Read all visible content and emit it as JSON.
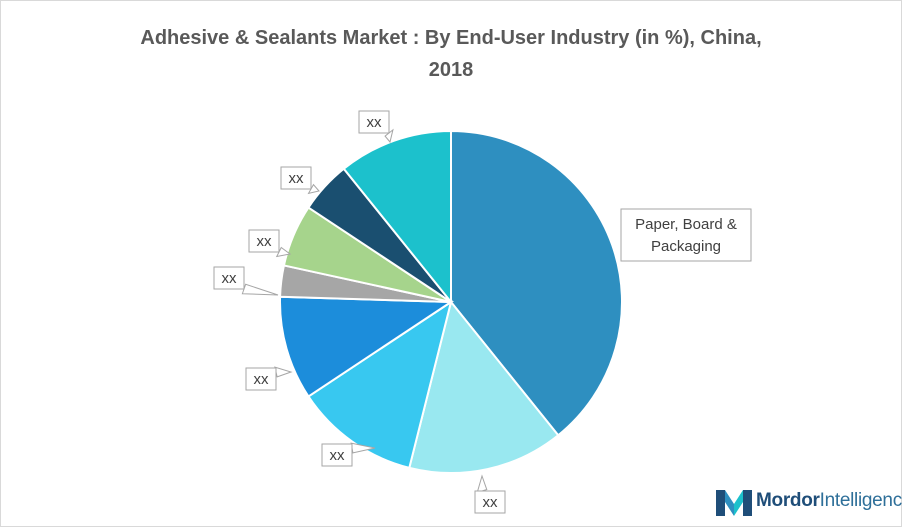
{
  "title_line1": "Adhesive & Sealants Market : By End-User Industry (in %), China,",
  "title_line2": "2018",
  "brand": {
    "name_bold": "Mordor",
    "name_light": "Intelligence"
  },
  "chart_data": {
    "type": "pie",
    "title": "Adhesive & Sealants Market : By End-User Industry (in %), China, 2018",
    "slices": [
      {
        "label_lines": [
          "Paper, Board &",
          "Packaging"
        ],
        "value": 40,
        "color": "#2e8fc0"
      },
      {
        "label_lines": [
          "xx"
        ],
        "value": 15,
        "color": "#99e8f0"
      },
      {
        "label_lines": [
          "xx"
        ],
        "value": 12,
        "color": "#38c8f0"
      },
      {
        "label_lines": [
          "xx"
        ],
        "value": 10,
        "color": "#1c8ddb"
      },
      {
        "label_lines": [
          "xx"
        ],
        "value": 3,
        "color": "#a6a6a6"
      },
      {
        "label_lines": [
          "xx"
        ],
        "value": 6,
        "color": "#a6d48c"
      },
      {
        "label_lines": [
          "xx"
        ],
        "value": 5,
        "color": "#1a4f70"
      },
      {
        "label_lines": [
          "xx"
        ],
        "value": 11,
        "color": "#1cc1cc"
      }
    ]
  }
}
